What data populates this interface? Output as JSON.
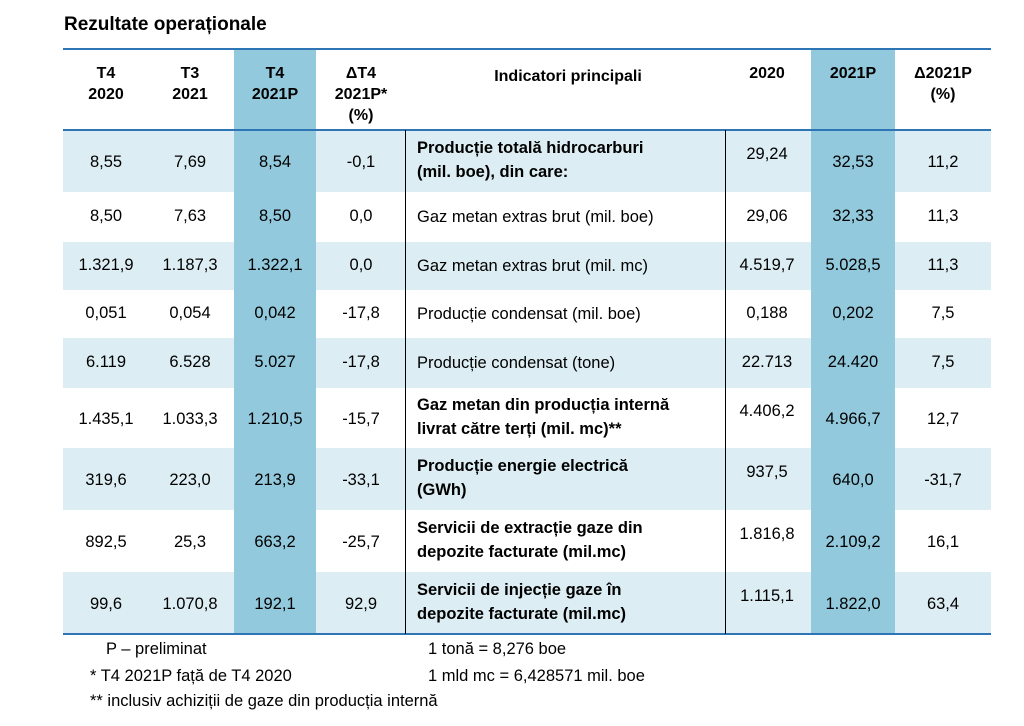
{
  "title": "Rezultate operaționale",
  "headers": {
    "t4_2020": [
      "T4",
      "2020"
    ],
    "t3_2021": [
      "T3",
      "2021"
    ],
    "t4_2021p": [
      "T4",
      "2021P"
    ],
    "delta_t4": [
      "ΔT4",
      "2021P*",
      "(%)"
    ],
    "indicators": "Indicatori principali",
    "y2020": "2020",
    "y2021p": "2021P",
    "delta_2021p": [
      "Δ2021P",
      "(%)"
    ]
  },
  "rows": [
    {
      "t4_2020": "8,55",
      "t3_2021": "7,69",
      "t4_2021p": "8,54",
      "delta_t4": "-0,1",
      "indicator": [
        "Producție totală hidrocarburi",
        "(mil. boe), din care:"
      ],
      "bold": true,
      "y2020": "29,24",
      "y2021p": "32,53",
      "delta_2021p": "11,2"
    },
    {
      "t4_2020": "8,50",
      "t3_2021": "7,63",
      "t4_2021p": "8,50",
      "delta_t4": "0,0",
      "indicator": [
        "Gaz metan extras brut (mil. boe)"
      ],
      "bold": false,
      "y2020": "29,06",
      "y2021p": "32,33",
      "delta_2021p": "11,3"
    },
    {
      "t4_2020": "1.321,9",
      "t3_2021": "1.187,3",
      "t4_2021p": "1.322,1",
      "delta_t4": "0,0",
      "indicator": [
        "Gaz metan extras brut (mil. mc)"
      ],
      "bold": false,
      "y2020": "4.519,7",
      "y2021p": "5.028,5",
      "delta_2021p": "11,3"
    },
    {
      "t4_2020": "0,051",
      "t3_2021": "0,054",
      "t4_2021p": "0,042",
      "delta_t4": "-17,8",
      "indicator": [
        "Producție condensat (mil. boe)"
      ],
      "bold": false,
      "y2020": "0,188",
      "y2021p": "0,202",
      "delta_2021p": "7,5"
    },
    {
      "t4_2020": "6.119",
      "t3_2021": "6.528",
      "t4_2021p": "5.027",
      "delta_t4": "-17,8",
      "indicator": [
        "Producție condensat (tone)"
      ],
      "bold": false,
      "y2020": "22.713",
      "y2021p": "24.420",
      "delta_2021p": "7,5"
    },
    {
      "t4_2020": "1.435,1",
      "t3_2021": "1.033,3",
      "t4_2021p": "1.210,5",
      "delta_t4": "-15,7",
      "indicator": [
        "Gaz metan din producția internă",
        "livrat către terți (mil. mc)**"
      ],
      "bold": true,
      "y2020": "4.406,2",
      "y2021p": "4.966,7",
      "delta_2021p": "12,7"
    },
    {
      "t4_2020": "319,6",
      "t3_2021": "223,0",
      "t4_2021p": "213,9",
      "delta_t4": "-33,1",
      "indicator": [
        "Producție energie electrică",
        "(GWh)"
      ],
      "bold": true,
      "y2020": "937,5",
      "y2021p": "640,0",
      "delta_2021p": "-31,7"
    },
    {
      "t4_2020": "892,5",
      "t3_2021": "25,3",
      "t4_2021p": "663,2",
      "delta_t4": "-25,7",
      "indicator": [
        "Servicii de extracție gaze din",
        "depozite facturate (mil.mc)"
      ],
      "bold": true,
      "y2020": "1.816,8",
      "y2021p": "2.109,2",
      "delta_2021p": "16,1"
    },
    {
      "t4_2020": "99,6",
      "t3_2021": "1.070,8",
      "t4_2021p": "192,1",
      "delta_t4": "92,9",
      "indicator": [
        "Servicii de injecție gaze în",
        "depozite facturate (mil.mc)"
      ],
      "bold": true,
      "y2020": "1.115,1",
      "y2021p": "1.822,0",
      "delta_2021p": "63,4"
    }
  ],
  "footnotes": {
    "preliminary": "P – preliminat",
    "asterisk": "* T4 2021P față de T4 2020",
    "double_asterisk": "** inclusiv achiziții de gaze din producția internă",
    "ton_conversion": "1 tonă = 8,276 boe",
    "mc_conversion": "1 mld mc = 6,428571 mil. boe"
  },
  "colors": {
    "highlight_column": "#92c9dc",
    "row_shade": "#dcedf3",
    "rule": "#2e75b6"
  }
}
